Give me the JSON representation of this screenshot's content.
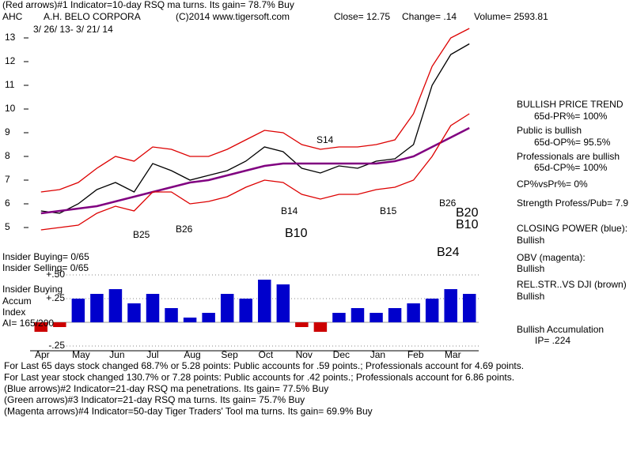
{
  "chart_data": [
    {
      "type": "line",
      "header": "(Red arrows)#1 Indicator=10-day RSQ ma turns. Its gain= 78.7% Buy",
      "symbol": "AHC",
      "company": "A.H. BELO CORPORA",
      "copyright": "(C)2014 www.tigersoft.com",
      "close": "Close= 12.75",
      "change": "Change= .14",
      "volume": "Volume= 2593.81",
      "date_range": "3/ 26/ 13- 3/ 21/ 14",
      "categories": [
        "Apr",
        null,
        "May",
        null,
        "Jun",
        null,
        "Jul",
        null,
        "Aug",
        null,
        "Sep",
        null,
        "Oct",
        null,
        "Nov",
        null,
        "Dec",
        null,
        "Jan",
        null,
        "Feb",
        null,
        "Mar",
        null
      ],
      "series": [
        {
          "color": "#000000",
          "values": [
            5.7,
            5.6,
            6.0,
            6.6,
            6.9,
            6.5,
            7.7,
            7.4,
            7.0,
            7.2,
            7.4,
            7.8,
            8.4,
            8.2,
            7.5,
            7.3,
            7.6,
            7.5,
            7.8,
            7.9,
            8.5,
            11.0,
            12.3,
            12.75
          ]
        },
        {
          "color": "#800080",
          "values": [
            5.6,
            5.7,
            5.8,
            5.9,
            6.1,
            6.3,
            6.5,
            6.7,
            6.9,
            7.0,
            7.2,
            7.4,
            7.6,
            7.7,
            7.7,
            7.7,
            7.7,
            7.7,
            7.7,
            7.8,
            8.0,
            8.4,
            8.8,
            9.2
          ]
        },
        {
          "color": "#dd0000",
          "values": [
            6.5,
            6.6,
            6.9,
            7.5,
            8.0,
            7.8,
            8.4,
            8.3,
            8.0,
            8.0,
            8.3,
            8.7,
            9.1,
            9.0,
            8.5,
            8.3,
            8.4,
            8.4,
            8.5,
            8.7,
            9.8,
            11.8,
            13.0,
            13.4
          ]
        },
        {
          "color": "#dd0000",
          "values": [
            4.9,
            5.0,
            5.1,
            5.6,
            5.9,
            5.7,
            6.5,
            6.5,
            6.0,
            6.1,
            6.3,
            6.7,
            7.0,
            6.9,
            6.4,
            6.2,
            6.4,
            6.4,
            6.6,
            6.7,
            7.0,
            8.0,
            9.3,
            9.8
          ]
        }
      ],
      "ylim": [
        4.5,
        13.5
      ],
      "yticks": [
        5,
        6,
        7,
        8,
        9,
        10,
        11,
        12,
        13
      ],
      "signals": [
        "S14",
        "B25",
        "B26",
        "B14",
        "B10",
        "B15",
        "B26",
        "B20",
        "B10",
        "B24"
      ],
      "side_panel": [
        "BULLISH PRICE TREND",
        "65d-PR%= 100%",
        "Public is bullish",
        "65d-OP%= 95.5%",
        "Professionals are bullish",
        "65d-CP%= 100%",
        "CP%vsPr%=  0%",
        "Strength Profess/Pub= 7.9",
        "CLOSING POWER (blue):",
        "Bullish",
        "OBV (magenta):",
        "Bullish",
        "REL.STR..VS DJI (brown)",
        "Bullish",
        "Bullish Accumulation",
        "IP= .224"
      ],
      "left_labels": [
        "Insider Buying= 0/65",
        "Insider Selling= 0/65",
        "Insider Buying",
        "Accum",
        "Index",
        "AI= 165/200"
      ],
      "footer": [
        "For Last 65 days stock changed  68.7% or  5.28 points:  Public accounts for  .59 points.;  Professionals account for  4.69 points.",
        "For Last year stock changed  130.7% or  7.28 points:  Public accounts for  .42 points.;  Professionals account for  6.86 points.",
        "(Blue arrows)#2 Indicator=21-day RSQ ma penetrations.  Its gain= 77.5% Buy",
        "(Green arrows)#3 Indicator=21-day RSQ ma turns.  Its gain= 75.7% Buy",
        "(Magenta arrows)#4 Indicator=50-day Tiger Traders' Tool ma turns. Its gain= 69.9% Buy"
      ]
    },
    {
      "type": "bar",
      "color": "#0000cc",
      "negative_color": "#cc0000",
      "values": [
        -0.1,
        -0.05,
        0.25,
        0.3,
        0.35,
        0.2,
        0.3,
        0.15,
        0.05,
        0.1,
        0.3,
        0.25,
        0.45,
        0.4,
        -0.05,
        -0.1,
        0.1,
        0.15,
        0.1,
        0.15,
        0.2,
        0.25,
        0.35,
        0.3
      ],
      "ylim": [
        -0.3,
        0.55
      ],
      "yticks": [
        {
          "value": 0.5,
          "label": "+.50"
        },
        {
          "value": 0.25,
          "label": "+.25"
        },
        {
          "value": -0.25,
          "label": "-.25"
        }
      ]
    }
  ]
}
